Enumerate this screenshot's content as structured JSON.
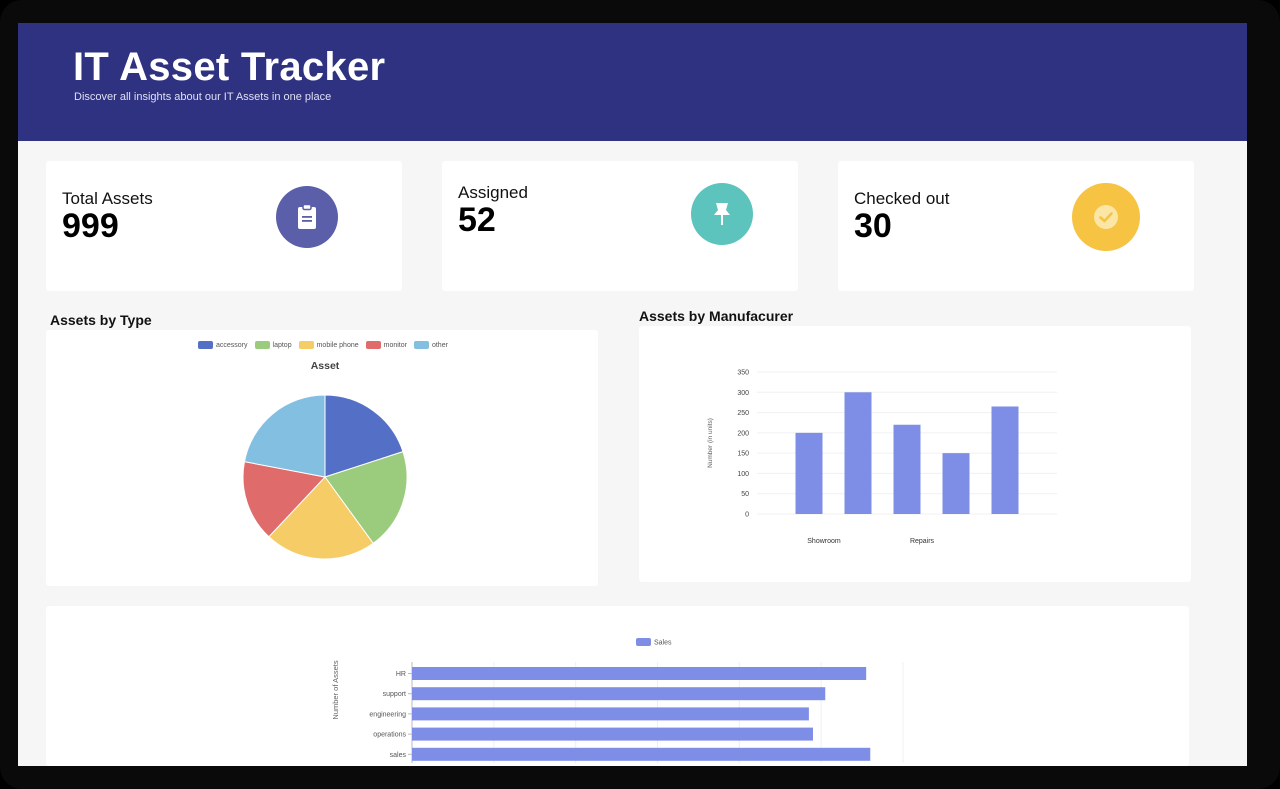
{
  "header": {
    "title": "IT Asset Tracker",
    "subtitle": "Discover all insights about our IT Assets in one place"
  },
  "stats": [
    {
      "label": "Total Assets",
      "value": "999",
      "icon": "clipboard-icon",
      "color": "#5b5ea9"
    },
    {
      "label": "Assigned",
      "value": "52",
      "icon": "pin-icon",
      "color": "#5cc3bd"
    },
    {
      "label": "Checked out",
      "value": "30",
      "icon": "check-circle-icon",
      "color": "#f6c342"
    }
  ],
  "sections": {
    "by_type": "Assets by Type",
    "by_manufacturer": "Assets by Manufacurer"
  },
  "chart_data": [
    {
      "type": "pie",
      "title": "Asset",
      "categories": [
        "accessory",
        "laptop",
        "mobile phone",
        "monitor",
        "other"
      ],
      "values": [
        20,
        20,
        22,
        16,
        22
      ],
      "colors": [
        "#5470c6",
        "#9bcc7e",
        "#f6cc66",
        "#e06b6b",
        "#83bfe0"
      ],
      "legend_position": "top"
    },
    {
      "type": "bar",
      "categories": [
        "Showroom",
        "",
        "Repairs",
        "",
        ""
      ],
      "values": [
        200,
        300,
        220,
        150,
        265
      ],
      "xlabel": "",
      "ylabel": "Number (in units)",
      "ylim": [
        0,
        350
      ],
      "yticks": [
        0,
        50,
        100,
        150,
        200,
        250,
        300,
        350
      ],
      "color": "#7e8ee6",
      "grid": true
    },
    {
      "type": "bar",
      "orientation": "horizontal",
      "categories": [
        "HR",
        "support",
        "engineering",
        "operations",
        "sales"
      ],
      "series": [
        {
          "name": "Sales",
          "values": [
            111,
            101,
            97,
            98,
            112
          ]
        }
      ],
      "xlim": [
        0,
        120
      ],
      "xticks": [
        0,
        20,
        40,
        60,
        80,
        100,
        120
      ],
      "ylabel": "Number of Assets",
      "color": "#7e8ee6",
      "legend_position": "top"
    }
  ]
}
